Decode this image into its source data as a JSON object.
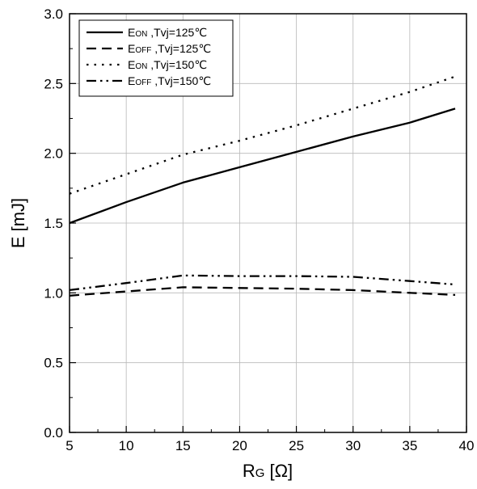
{
  "chart_data": {
    "type": "line",
    "title": "",
    "xlabel": "RG [Ω]",
    "xlabel_main": "R",
    "xlabel_sub": "G",
    "xlabel_unit": " [Ω]",
    "ylabel": "E [mJ]",
    "xlim": [
      5,
      40
    ],
    "ylim": [
      0.0,
      3.0
    ],
    "x_ticks": [
      5,
      10,
      15,
      20,
      25,
      30,
      35,
      40
    ],
    "x_tick_labels": [
      "5",
      "10",
      "15",
      "20",
      "25",
      "30",
      "35",
      "40"
    ],
    "y_ticks": [
      0.0,
      0.5,
      1.0,
      1.5,
      2.0,
      2.5,
      3.0
    ],
    "y_tick_labels": [
      "0.0",
      "0.5",
      "1.0",
      "1.5",
      "2.0",
      "2.5",
      "3.0"
    ],
    "grid": true,
    "legend_position": "top-left",
    "series": [
      {
        "name": "EON ,Tvj=125℃",
        "label_main": "E",
        "label_sub": "ON",
        "label_rest": " ,Tvj=125℃",
        "style": "solid",
        "x": [
          5,
          10,
          15,
          20,
          25,
          30,
          35,
          39
        ],
        "y": [
          1.5,
          1.65,
          1.79,
          1.9,
          2.01,
          2.12,
          2.22,
          2.32
        ]
      },
      {
        "name": "EOFF ,Tvj=125℃",
        "label_main": "E",
        "label_sub": "OFF",
        "label_rest": " ,Tvj=125℃",
        "style": "dash",
        "x": [
          5,
          10,
          15,
          20,
          25,
          30,
          35,
          39
        ],
        "y": [
          0.98,
          1.01,
          1.04,
          1.035,
          1.03,
          1.02,
          1.0,
          0.985
        ]
      },
      {
        "name": "EON ,Tvj=150℃",
        "label_main": "E",
        "label_sub": "ON",
        "label_rest": " ,Tvj=150℃",
        "style": "dot",
        "x": [
          5,
          10,
          15,
          20,
          25,
          30,
          35,
          39
        ],
        "y": [
          1.71,
          1.85,
          1.99,
          2.09,
          2.2,
          2.32,
          2.44,
          2.55
        ]
      },
      {
        "name": "EOFF ,Tvj=150℃",
        "label_main": "E",
        "label_sub": "OFF",
        "label_rest": " ,Tvj=150℃",
        "style": "dashdotdot",
        "x": [
          5,
          10,
          15,
          20,
          25,
          30,
          35,
          39
        ],
        "y": [
          1.02,
          1.07,
          1.125,
          1.12,
          1.12,
          1.115,
          1.085,
          1.06
        ]
      }
    ]
  }
}
